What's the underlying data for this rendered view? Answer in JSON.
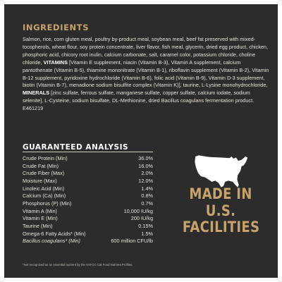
{
  "ingredients": {
    "title": "INGREDIENTS",
    "text_before_vitamins": "Salmon, rice, corn gluten meal, poultry by-product meal, soybean meal, beef fat preserved with mixed-tocopherols, wheat flour, soy protein concentrate, liver flavor, fish meal, glycerin, dried egg product, chicken, phosphoric acid, chicory root inulin, calcium carbonate, salt, caramel color, potassium chloride, choline chloride, ",
    "vitamins_label": "VITAMINS",
    "text_vitamins": " [Vitamin E supplement, niacin (Vitamin B-3), Vitamin A supplement, calcium pantothenate (Vitamin B-5), thiamine mononitrate (Vitamin B-1), riboflavin supplement (Vitamin B-2), Vitamin B-12 supplement, pyridoxine hydrochloride (Vitamin B-6), folic acid (Vitamin B-9), Vitamin D-3 supplement, biotin (Vitamin B-7), menadione sodium bisulfite complex (Vitamin K)], taurine, L-Lysine monohydrochloride, ",
    "minerals_label": "MINERALS",
    "text_minerals": " [zinc sulfate, ferrous sulfate, manganese sulfate, copper sulfate, calcium iodate, sodium selenite], L-Cysteine, sodium bisulfate, DL-Methionine, dried Bacillus coagulans fermentation product. E461219"
  },
  "guaranteed_analysis": {
    "title": "GUARANTEED ANALYSIS",
    "rows": [
      {
        "name": "Crude Protein (Min)",
        "value": "36.0%"
      },
      {
        "name": "Crude Fat (Min)",
        "value": "16.0%"
      },
      {
        "name": "Crude Fiber (Max)",
        "value": "2.0%"
      },
      {
        "name": "Moisture (Max)",
        "value": "12.0%"
      },
      {
        "name": "Linoleic Acid (Min)",
        "value": "1.4%"
      },
      {
        "name": "Calcium (Ca) (Min)",
        "value": "0.8%"
      },
      {
        "name": "Phosphorus (P) (Min)",
        "value": "0.7%"
      },
      {
        "name": "Vitamin A (Min)",
        "value": "10,000 IU/kg"
      },
      {
        "name": "Vitamin E (Min)",
        "value": "200 IU/kg"
      },
      {
        "name": "Taurine (Min)",
        "value": "0.15%"
      },
      {
        "name": "Omega-6 Fatty Acids* (Min)",
        "value": "1.5%"
      },
      {
        "name": "Bacillus coagulans* (Min)",
        "value": "600 million CFU/lb"
      }
    ]
  },
  "footnote": "*Not recognized as an essential nutrient by the AAFCO Cat Food Nutrient Profiles.",
  "badge": {
    "line1": "MADE IN",
    "line2": "U.S.",
    "line3": "FACILITIES",
    "map_icon": "usa-map-icon",
    "map_color": "#ffffff",
    "text_color": "#c7a26b"
  },
  "colors": {
    "background": "#2c2c2c",
    "accent_gold": "#c7a26b",
    "body_text": "#e6e2da"
  }
}
